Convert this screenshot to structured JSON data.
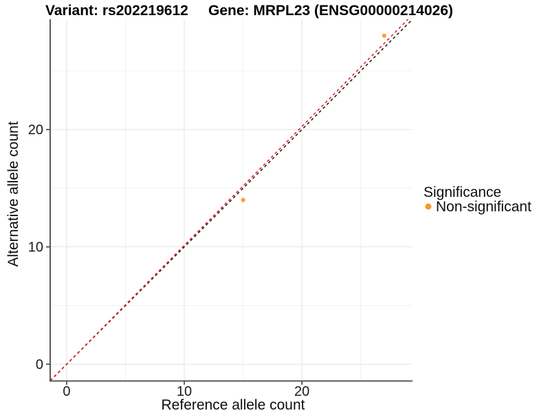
{
  "chart_data": {
    "type": "scatter",
    "title_left": "Variant: rs202219612",
    "title_right": "Gene: MRPL23 (ENSG00000214026)",
    "xlabel": "Reference allele count",
    "ylabel": "Alternative allele count",
    "xlim": [
      -1.4,
      29.4
    ],
    "ylim": [
      -1.4,
      29.4
    ],
    "xticks": {
      "major": [
        0,
        10,
        20
      ],
      "minor": [
        5,
        15,
        25
      ]
    },
    "yticks": {
      "major": [
        0,
        10,
        20
      ],
      "minor": [
        5,
        15,
        25
      ]
    },
    "grid": true,
    "points": [
      {
        "x": 15,
        "y": 14,
        "series": "Non-significant"
      },
      {
        "x": 27,
        "y": 28,
        "series": "Non-significant"
      }
    ],
    "lines": [
      {
        "name": "identity-line",
        "slope": 1.0,
        "intercept": 0,
        "color": "#262626",
        "style": "dashed"
      },
      {
        "name": "fit-line",
        "slope": 1.013,
        "intercept": 0,
        "color": "#e8262d",
        "style": "dashed"
      }
    ],
    "legend": {
      "title": "Significance",
      "position": "right",
      "items": [
        {
          "label": "Non-significant",
          "color": "#f9992b"
        }
      ]
    },
    "colors": {
      "point": "#f9a032",
      "grid_major": "#e2e2e2",
      "grid_minor": "#f0f0f0",
      "axis": "#474747",
      "tick": "#333333"
    }
  }
}
